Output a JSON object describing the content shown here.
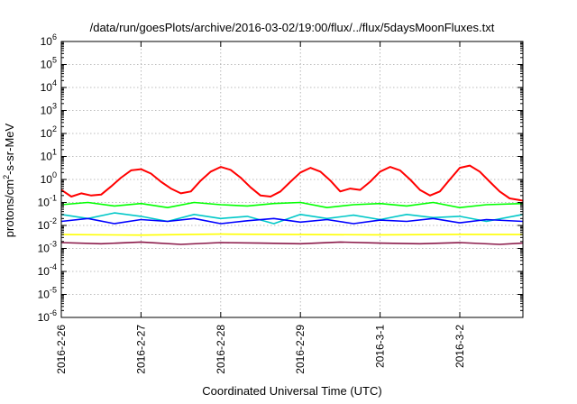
{
  "chart_data": {
    "type": "line",
    "title": "/data/run/goesPlots/archive/2016-03-02/19:00/flux/../flux/5daysMoonFluxes.txt",
    "xlabel": "Coordinated Universal Time (UTC)",
    "ylabel_main": "protons/cm",
    "ylabel_sup": "2",
    "ylabel_rest": "-s-sr-MeV",
    "y_scale": "log",
    "ylim": [
      1e-06,
      1000000.0
    ],
    "y_ticks": [
      {
        "value": 1e-06,
        "base": "10",
        "exp": "-6"
      },
      {
        "value": 1e-05,
        "base": "10",
        "exp": "-5"
      },
      {
        "value": 0.0001,
        "base": "10",
        "exp": "-4"
      },
      {
        "value": 0.001,
        "base": "10",
        "exp": "-3"
      },
      {
        "value": 0.01,
        "base": "10",
        "exp": "-2"
      },
      {
        "value": 0.1,
        "base": "10",
        "exp": "-1"
      },
      {
        "value": 1.0,
        "base": "10",
        "exp": "0"
      },
      {
        "value": 10.0,
        "base": "10",
        "exp": "1"
      },
      {
        "value": 100.0,
        "base": "10",
        "exp": "2"
      },
      {
        "value": 1000.0,
        "base": "10",
        "exp": "3"
      },
      {
        "value": 10000.0,
        "base": "10",
        "exp": "4"
      },
      {
        "value": 100000.0,
        "base": "10",
        "exp": "5"
      },
      {
        "value": 1000000.0,
        "base": "10",
        "exp": "6"
      }
    ],
    "xlim": [
      "2016-02-26 00:00",
      "2016-03-02 19:00"
    ],
    "x_ticks": [
      "2016-2-26",
      "2016-2-27",
      "2016-2-28",
      "2016-2-29",
      "2016-3-1",
      "2016-3-2"
    ],
    "grid": true,
    "series": [
      {
        "color": "#ff0000",
        "x": [
          "2016-02-26 00:00",
          "2016-02-26 03:00",
          "2016-02-26 06:00",
          "2016-02-26 09:00",
          "2016-02-26 12:00",
          "2016-02-26 15:00",
          "2016-02-26 18:00",
          "2016-02-26 21:00",
          "2016-02-27 00:00",
          "2016-02-27 03:00",
          "2016-02-27 06:00",
          "2016-02-27 09:00",
          "2016-02-27 12:00",
          "2016-02-27 15:00",
          "2016-02-27 18:00",
          "2016-02-27 21:00",
          "2016-02-28 00:00",
          "2016-02-28 03:00",
          "2016-02-28 06:00",
          "2016-02-28 09:00",
          "2016-02-28 12:00",
          "2016-02-28 15:00",
          "2016-02-28 18:00",
          "2016-02-28 21:00",
          "2016-02-29 00:00",
          "2016-02-29 03:00",
          "2016-02-29 06:00",
          "2016-02-29 09:00",
          "2016-02-29 12:00",
          "2016-02-29 15:00",
          "2016-02-29 18:00",
          "2016-02-29 21:00",
          "2016-03-01 00:00",
          "2016-03-01 03:00",
          "2016-03-01 06:00",
          "2016-03-01 09:00",
          "2016-03-01 12:00",
          "2016-03-01 15:00",
          "2016-03-01 18:00",
          "2016-03-01 21:00",
          "2016-03-02 00:00",
          "2016-03-02 03:00",
          "2016-03-02 06:00",
          "2016-03-02 09:00",
          "2016-03-02 12:00",
          "2016-03-02 15:00",
          "2016-03-02 19:00"
        ],
        "y": [
          0.35,
          0.18,
          0.25,
          0.2,
          0.22,
          0.5,
          1.2,
          2.5,
          2.8,
          1.8,
          0.8,
          0.4,
          0.25,
          0.3,
          0.9,
          2.2,
          3.5,
          2.6,
          1.2,
          0.45,
          0.2,
          0.18,
          0.3,
          0.8,
          2.0,
          3.2,
          2.2,
          0.9,
          0.3,
          0.4,
          0.35,
          0.8,
          2.2,
          3.5,
          2.5,
          1.0,
          0.35,
          0.2,
          0.3,
          1.0,
          3.2,
          4.0,
          2.2,
          0.8,
          0.3,
          0.15,
          0.12
        ]
      },
      {
        "color": "#00ff00",
        "x": [
          "2016-02-26 00:00",
          "2016-02-26 08:00",
          "2016-02-26 16:00",
          "2016-02-27 00:00",
          "2016-02-27 08:00",
          "2016-02-27 16:00",
          "2016-02-28 00:00",
          "2016-02-28 08:00",
          "2016-02-28 16:00",
          "2016-02-29 00:00",
          "2016-02-29 08:00",
          "2016-02-29 16:00",
          "2016-03-01 00:00",
          "2016-03-01 08:00",
          "2016-03-01 16:00",
          "2016-03-02 00:00",
          "2016-03-02 08:00",
          "2016-03-02 19:00"
        ],
        "y": [
          0.08,
          0.1,
          0.07,
          0.09,
          0.06,
          0.1,
          0.08,
          0.07,
          0.09,
          0.1,
          0.06,
          0.08,
          0.09,
          0.07,
          0.1,
          0.06,
          0.08,
          0.09
        ]
      },
      {
        "color": "#00c8c8",
        "x": [
          "2016-02-26 00:00",
          "2016-02-26 08:00",
          "2016-02-26 16:00",
          "2016-02-27 00:00",
          "2016-02-27 08:00",
          "2016-02-27 16:00",
          "2016-02-28 00:00",
          "2016-02-28 08:00",
          "2016-02-28 16:00",
          "2016-02-29 00:00",
          "2016-02-29 08:00",
          "2016-02-29 16:00",
          "2016-03-01 00:00",
          "2016-03-01 08:00",
          "2016-03-01 16:00",
          "2016-03-02 00:00",
          "2016-03-02 08:00",
          "2016-03-02 19:00"
        ],
        "y": [
          0.03,
          0.02,
          0.035,
          0.025,
          0.015,
          0.03,
          0.02,
          0.025,
          0.012,
          0.03,
          0.02,
          0.028,
          0.018,
          0.03,
          0.022,
          0.025,
          0.015,
          0.03
        ]
      },
      {
        "color": "#0000ff",
        "x": [
          "2016-02-26 00:00",
          "2016-02-26 08:00",
          "2016-02-26 16:00",
          "2016-02-27 00:00",
          "2016-02-27 08:00",
          "2016-02-27 16:00",
          "2016-02-28 00:00",
          "2016-02-28 08:00",
          "2016-02-28 16:00",
          "2016-02-29 00:00",
          "2016-02-29 08:00",
          "2016-02-29 16:00",
          "2016-03-01 00:00",
          "2016-03-01 08:00",
          "2016-03-01 16:00",
          "2016-03-02 00:00",
          "2016-03-02 08:00",
          "2016-03-02 19:00"
        ],
        "y": [
          0.015,
          0.02,
          0.012,
          0.018,
          0.015,
          0.02,
          0.012,
          0.016,
          0.02,
          0.014,
          0.018,
          0.012,
          0.017,
          0.015,
          0.02,
          0.013,
          0.018,
          0.015
        ]
      },
      {
        "color": "#ffff00",
        "x": [
          "2016-02-26 00:00",
          "2016-02-27 00:00",
          "2016-02-28 00:00",
          "2016-02-29 00:00",
          "2016-03-01 00:00",
          "2016-03-02 00:00",
          "2016-03-02 19:00"
        ],
        "y": [
          0.004,
          0.0038,
          0.0042,
          0.004,
          0.0039,
          0.0041,
          0.004
        ]
      },
      {
        "color": "#8b1a4a",
        "x": [
          "2016-02-26 00:00",
          "2016-02-26 12:00",
          "2016-02-27 00:00",
          "2016-02-27 12:00",
          "2016-02-28 00:00",
          "2016-02-28 12:00",
          "2016-02-29 00:00",
          "2016-02-29 12:00",
          "2016-03-01 00:00",
          "2016-03-01 12:00",
          "2016-03-02 00:00",
          "2016-03-02 12:00",
          "2016-03-02 19:00"
        ],
        "y": [
          0.0018,
          0.0016,
          0.0019,
          0.0015,
          0.0018,
          0.0017,
          0.0016,
          0.0019,
          0.0017,
          0.0016,
          0.0018,
          0.0015,
          0.0017
        ]
      }
    ]
  }
}
